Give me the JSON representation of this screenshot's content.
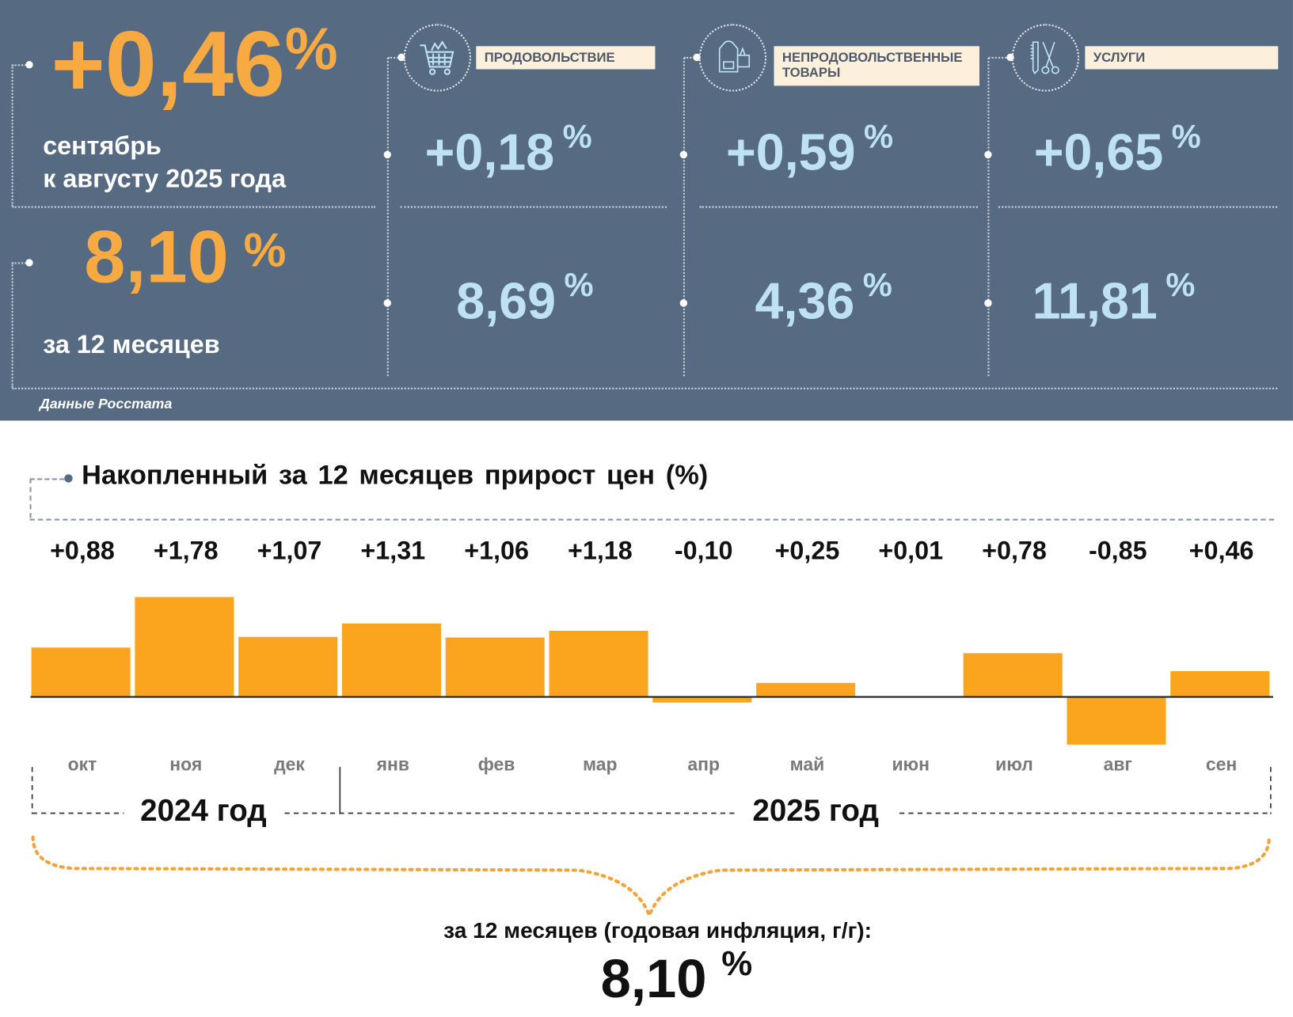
{
  "header": {
    "monthly_value": "+0,46",
    "percent": "%",
    "monthly_caption_line1": "сентябрь",
    "monthly_caption_line2": "к августу 2025 года",
    "annual_value": "8,10",
    "annual_caption": "за 12 месяцев",
    "source": "Данные Росстата"
  },
  "categories": [
    {
      "icon": "shopping-cart-icon",
      "label": "ПРОДОВОЛЬСТВИЕ",
      "monthly": "+0,18",
      "annual": "8,69"
    },
    {
      "icon": "clothing-bag-icon",
      "label_line1": "НЕПРОДОВОЛЬСТВЕННЫЕ",
      "label_line2": "ТОВАРЫ",
      "monthly": "+0,59",
      "annual": "4,36"
    },
    {
      "icon": "comb-scissors-icon",
      "label": "УСЛУГИ",
      "monthly": "+0,65",
      "annual": "11,81"
    }
  ],
  "chart_data": {
    "type": "bar",
    "title": "Накопленный за 12 месяцев прирост цен (%)",
    "categories": [
      "окт",
      "ноя",
      "дек",
      "янв",
      "фев",
      "мар",
      "апр",
      "май",
      "июн",
      "июл",
      "авг",
      "сен"
    ],
    "labels": [
      "+0,88",
      "+1,78",
      "+1,07",
      "+1,31",
      "+1,06",
      "+1,18",
      "-0,10",
      "+0,25",
      "+0,01",
      "+0,78",
      "-0,85",
      "+0,46"
    ],
    "values": [
      0.88,
      1.78,
      1.07,
      1.31,
      1.06,
      1.18,
      -0.1,
      0.25,
      0.01,
      0.78,
      -0.85,
      0.46
    ],
    "year_groups": [
      "2024 год",
      "2025 год"
    ],
    "bar_color": "#fba51f",
    "xlabel": "",
    "ylabel": "",
    "grid": false
  },
  "footer": {
    "caption": "за 12 месяцев (годовая инфляция, г/г):",
    "value": "8,10",
    "percent": "%"
  }
}
